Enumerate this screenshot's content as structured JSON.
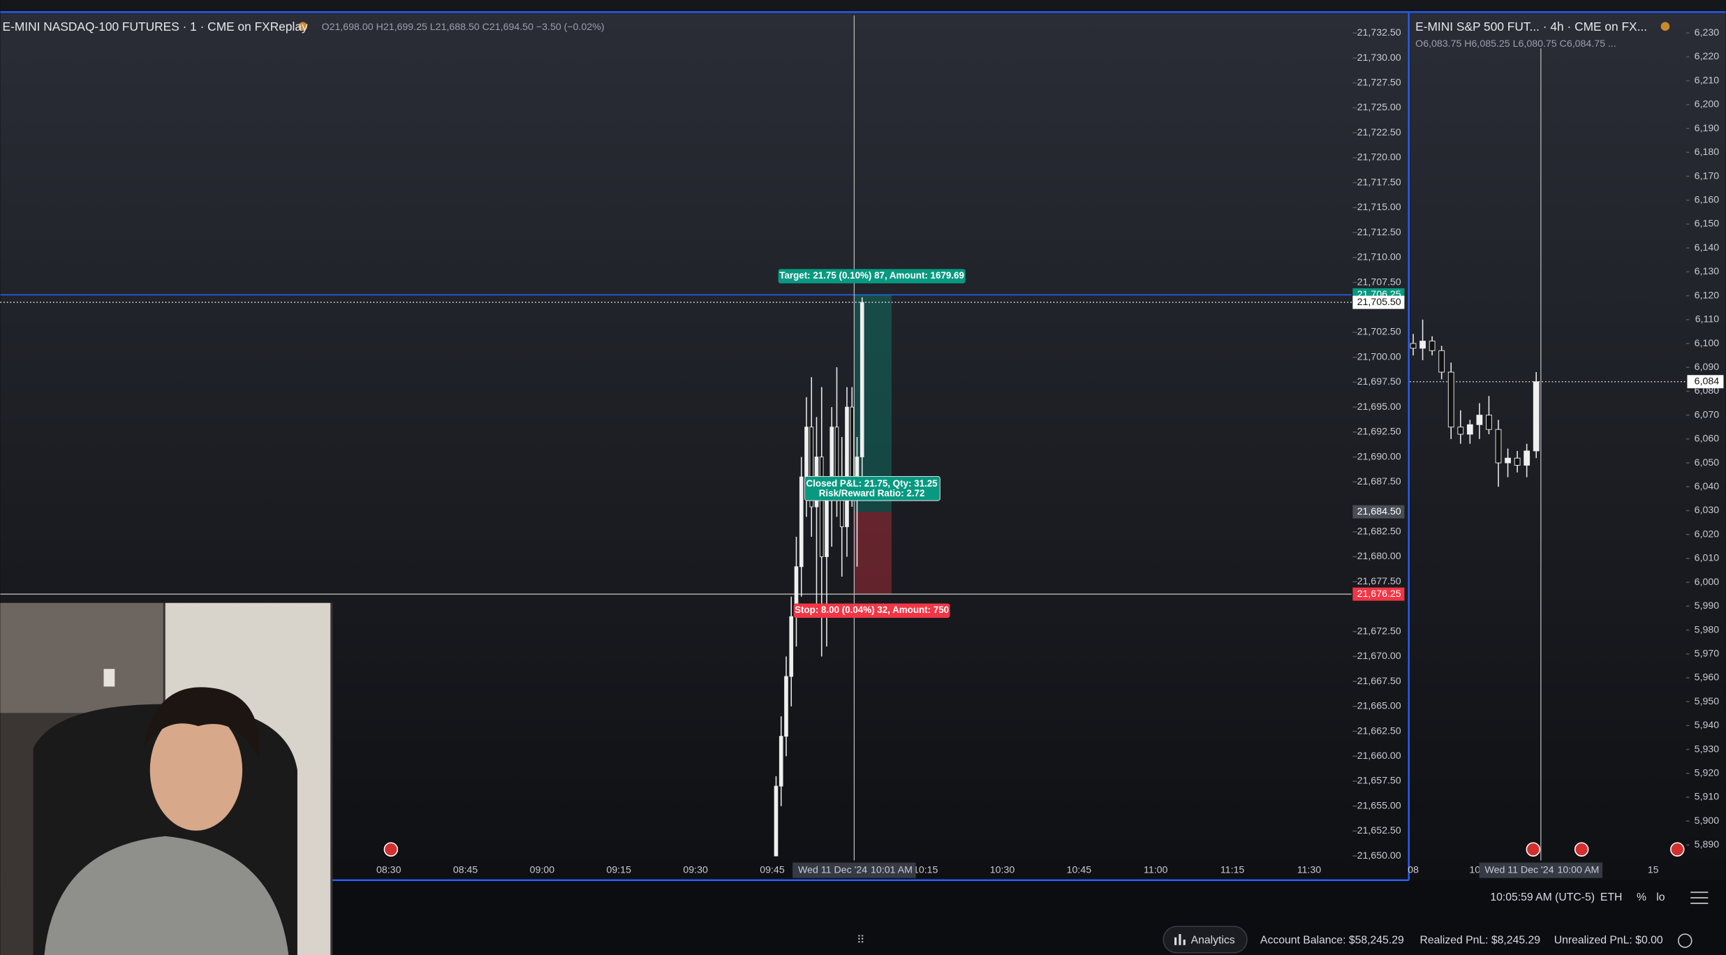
{
  "left_chart": {
    "title": "E-MINI NASDAQ-100 FUTURES · 1 · CME on FXReplay",
    "ohlc": "O21,698.00 H21,699.25 L21,688.50 C21,694.50 −3.50 (−0.02%)",
    "price_ticks": [
      {
        "value": 21732.5,
        "label": "21,732.50"
      },
      {
        "value": 21730,
        "label": "21,730.00"
      },
      {
        "value": 21727.5,
        "label": "21,727.50"
      },
      {
        "value": 21725,
        "label": "21,725.00"
      },
      {
        "value": 21722.5,
        "label": "21,722.50"
      },
      {
        "value": 21720,
        "label": "21,720.00"
      },
      {
        "value": 21717.5,
        "label": "21,717.50"
      },
      {
        "value": 21715,
        "label": "21,715.00"
      },
      {
        "value": 21712.5,
        "label": "21,712.50"
      },
      {
        "value": 21710,
        "label": "21,710.00"
      },
      {
        "value": 21707.5,
        "label": "21,707.50"
      },
      {
        "value": 21702.5,
        "label": "21,702.50"
      },
      {
        "value": 21700,
        "label": "21,700.00"
      },
      {
        "value": 21697.5,
        "label": "21,697.50"
      },
      {
        "value": 21695,
        "label": "21,695.00"
      },
      {
        "value": 21692.5,
        "label": "21,692.50"
      },
      {
        "value": 21690,
        "label": "21,690.00"
      },
      {
        "value": 21687.5,
        "label": "21,687.50"
      },
      {
        "value": 21682.5,
        "label": "21,682.50"
      },
      {
        "value": 21680,
        "label": "21,680.00"
      },
      {
        "value": 21677.5,
        "label": "21,677.50"
      },
      {
        "value": 21672.5,
        "label": "21,672.50"
      },
      {
        "value": 21670,
        "label": "21,670.00"
      },
      {
        "value": 21667.5,
        "label": "21,667.50"
      },
      {
        "value": 21665,
        "label": "21,665.00"
      },
      {
        "value": 21662.5,
        "label": "21,662.50"
      },
      {
        "value": 21660,
        "label": "21,660.00"
      },
      {
        "value": 21657.5,
        "label": "21,657.50"
      },
      {
        "value": 21655,
        "label": "21,655.00"
      },
      {
        "value": 21652.5,
        "label": "21,652.50"
      },
      {
        "value": 21650,
        "label": "21,650.00"
      }
    ],
    "time_labels": [
      "08:30",
      "08:45",
      "09:00",
      "09:15",
      "09:30",
      "09:45",
      null,
      "10:15",
      "10:30",
      "10:45",
      "11:00",
      "11:15",
      "11:30"
    ],
    "crosshair_date": "Wed 11 Dec '24",
    "crosshair_time": "10:01 AM",
    "price_tags": [
      {
        "value": 21706.25,
        "label": "21,706.25",
        "color": "#089981"
      },
      {
        "value": 21705.5,
        "label": "21,705.50",
        "color": "#ffffff"
      },
      {
        "value": 21684.5,
        "label": "21,684.50",
        "color": "#4a4d55"
      },
      {
        "value": 21676.25,
        "label": "21,676.25",
        "color": "#f23645"
      }
    ],
    "position": {
      "target": "Target: 21.75 (0.10%) 87, Amount: 1679.69",
      "pnl": "Closed P&L: 21.75, Qty: 31.25",
      "rr": "Risk/Reward Ratio: 2.72",
      "stop": "Stop: 8.00 (0.04%) 32, Amount: 750"
    },
    "candles": [
      [
        21650,
        21658,
        21650,
        21657
      ],
      [
        21657,
        21664,
        21655,
        21662
      ],
      [
        21662,
        21670,
        21660,
        21668
      ],
      [
        21668,
        21676,
        21665,
        21674
      ],
      [
        21674,
        21682,
        21671,
        21679
      ],
      [
        21679,
        21690,
        21676,
        21688
      ],
      [
        21688,
        21696,
        21684,
        21693
      ],
      [
        21693,
        21698,
        21682,
        21685
      ],
      [
        21685,
        21694,
        21674,
        21690
      ],
      [
        21690,
        21697,
        21670,
        21680
      ],
      [
        21680,
        21688,
        21671,
        21686
      ],
      [
        21686,
        21695,
        21681,
        21693
      ],
      [
        21693,
        21699,
        21684,
        21687
      ],
      [
        21687,
        21692,
        21678,
        21683
      ],
      [
        21683,
        21697,
        21680,
        21695
      ],
      [
        21695,
        21697,
        21685,
        21688
      ],
      [
        21688,
        21692,
        21679,
        21690
      ],
      [
        21690,
        21706,
        21687,
        21705.5
      ]
    ]
  },
  "right_chart": {
    "title": "E-MINI S&P 500 FUT... · 4h · CME on FX...",
    "ohlc": "O6,083.75 H6,085.25 L6,080.75 C6,084.75 ...",
    "price_ticks": [
      {
        "value": 6230,
        "label": "6,230"
      },
      {
        "value": 6220,
        "label": "6,220"
      },
      {
        "value": 6210,
        "label": "6,210"
      },
      {
        "value": 6200,
        "label": "6,200"
      },
      {
        "value": 6190,
        "label": "6,190"
      },
      {
        "value": 6180,
        "label": "6,180"
      },
      {
        "value": 6170,
        "label": "6,170"
      },
      {
        "value": 6160,
        "label": "6,160"
      },
      {
        "value": 6150,
        "label": "6,150"
      },
      {
        "value": 6140,
        "label": "6,140"
      },
      {
        "value": 6130,
        "label": "6,130"
      },
      {
        "value": 6120,
        "label": "6,120"
      },
      {
        "value": 6110,
        "label": "6,110"
      },
      {
        "value": 6100,
        "label": "6,100"
      },
      {
        "value": 6090,
        "label": "6,090"
      },
      {
        "value": 6080,
        "label": "6,080"
      },
      {
        "value": 6070,
        "label": "6,070"
      },
      {
        "value": 6060,
        "label": "6,060"
      },
      {
        "value": 6050,
        "label": "6,050"
      },
      {
        "value": 6040,
        "label": "6,040"
      },
      {
        "value": 6030,
        "label": "6,030"
      },
      {
        "value": 6020,
        "label": "6,020"
      },
      {
        "value": 6010,
        "label": "6,010"
      },
      {
        "value": 6000,
        "label": "6,000"
      },
      {
        "value": 5990,
        "label": "5,990"
      },
      {
        "value": 5980,
        "label": "5,980"
      },
      {
        "value": 5970,
        "label": "5,970"
      },
      {
        "value": 5960,
        "label": "5,960"
      },
      {
        "value": 5950,
        "label": "5,950"
      },
      {
        "value": 5940,
        "label": "5,940"
      },
      {
        "value": 5930,
        "label": "5,930"
      },
      {
        "value": 5920,
        "label": "5,920"
      },
      {
        "value": 5910,
        "label": "5,910"
      },
      {
        "value": 5900,
        "label": "5,900"
      },
      {
        "value": 5890,
        "label": "5,890"
      }
    ],
    "time_labels": [
      "08",
      "10",
      "15"
    ],
    "crosshair_date": "Wed 11 Dec '24",
    "crosshair_time": "10:00 AM",
    "price_tag": {
      "value": 6084,
      "label": "6,084"
    },
    "candles": [
      [
        6100,
        6104,
        6095,
        6098
      ],
      [
        6098,
        6110,
        6093,
        6101
      ],
      [
        6101,
        6103,
        6095,
        6097
      ],
      [
        6097,
        6099,
        6085,
        6088
      ],
      [
        6088,
        6092,
        6060,
        6065
      ],
      [
        6065,
        6072,
        6058,
        6062
      ],
      [
        6062,
        6068,
        6058,
        6066
      ],
      [
        6066,
        6075,
        6060,
        6070
      ],
      [
        6070,
        6078,
        6062,
        6064
      ],
      [
        6064,
        6068,
        6040,
        6050
      ],
      [
        6050,
        6056,
        6044,
        6052
      ],
      [
        6052,
        6055,
        6046,
        6049
      ],
      [
        6049,
        6058,
        6044,
        6055
      ],
      [
        6055,
        6088,
        6052,
        6084
      ]
    ]
  },
  "status_bar": {
    "clock": "10:05:59 AM (UTC-5)",
    "session": "ETH",
    "percent": "%",
    "log": "lo"
  },
  "footer": {
    "analytics": "Analytics",
    "balance": "Account Balance: $58,245.29",
    "realized": "Realized PnL: $8,245.29",
    "unrealized": "Unrealized PnL: $0.00"
  }
}
